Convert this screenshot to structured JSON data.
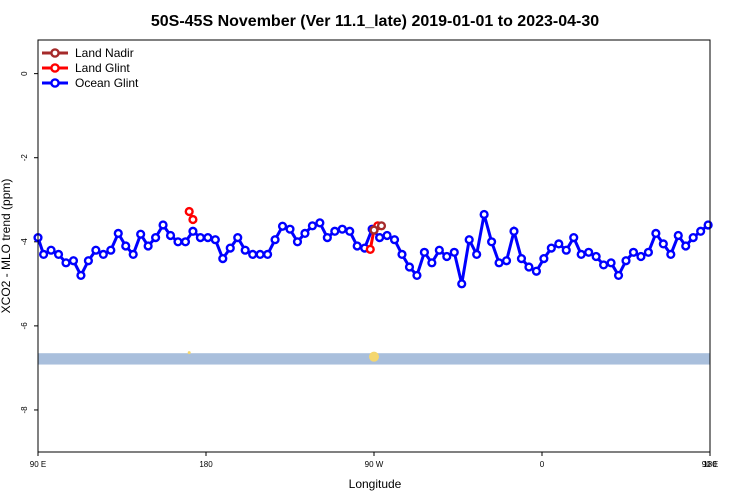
{
  "chart_data": {
    "type": "line",
    "title": "50S-45S November (Ver 11.1_late)   2019-01-01 to 2023-04-30",
    "xlabel": "Longitude",
    "ylabel": "XCO2 - MLO trend (ppm)",
    "xlim": [
      90,
      450
    ],
    "ylim": [
      -9,
      0.8
    ],
    "x_ticks": [
      {
        "value": 90,
        "label": "90 E"
      },
      {
        "value": 180,
        "label": "180"
      },
      {
        "value": 270,
        "label": "90 W"
      },
      {
        "value": 360,
        "label": "0"
      },
      {
        "value": 450,
        "label": "90 E"
      },
      {
        "value": 540,
        "label": "180"
      }
    ],
    "y_ticks": [
      {
        "value": 0,
        "label": "0"
      },
      {
        "value": -2,
        "label": "-2"
      },
      {
        "value": -4,
        "label": "-4"
      },
      {
        "value": -6,
        "label": "-6"
      },
      {
        "value": -8,
        "label": "-8"
      }
    ],
    "legend_position": "top-left",
    "land_band": {
      "y_from": -6.65,
      "y_to": -6.92,
      "color": "#a9bfdc",
      "marker_color": "#f5d76e"
    },
    "series": [
      {
        "name": "Land Nadir",
        "color": "#a52a2a",
        "x": [
          270,
          274
        ],
        "y": [
          -3.72,
          -3.62
        ]
      },
      {
        "name": "Land Glint",
        "color": "#ff0000",
        "segments": [
          {
            "x": [
              171,
              173
            ],
            "y": [
              -3.28,
              -3.47
            ]
          },
          {
            "x": [
              268,
              270,
              272
            ],
            "y": [
              -4.18,
              -3.72,
              -3.62
            ]
          },
          {
            "x": [
              526,
              528
            ],
            "y": [
              -3.28,
              -3.47
            ]
          }
        ]
      },
      {
        "name": "Ocean Glint",
        "color": "#0000ff",
        "x": [
          90,
          93,
          97,
          101,
          105,
          109,
          113,
          117,
          121,
          125,
          129,
          133,
          137,
          141,
          145,
          149,
          153,
          157,
          161,
          165,
          169,
          173,
          177,
          181,
          185,
          189,
          193,
          197,
          201,
          205,
          209,
          213,
          217,
          221,
          225,
          229,
          233,
          237,
          241,
          245,
          249,
          253,
          257,
          261,
          265,
          269,
          273,
          277,
          281,
          285,
          289,
          293,
          297,
          301,
          305,
          309,
          313,
          317,
          321,
          325,
          329,
          333,
          337,
          341,
          345,
          349,
          353,
          357,
          361,
          365,
          369,
          373,
          377,
          381,
          385,
          389,
          393,
          397,
          401,
          405,
          409,
          413,
          417,
          421,
          425,
          429,
          433,
          437,
          441,
          445,
          449
        ],
        "y": [
          -3.9,
          -4.3,
          -4.2,
          -4.3,
          -4.5,
          -4.45,
          -4.8,
          -4.45,
          -4.2,
          -4.3,
          -4.2,
          -3.8,
          -4.1,
          -4.3,
          -3.82,
          -4.1,
          -3.9,
          -3.6,
          -3.85,
          -4.0,
          -4.0,
          -3.75,
          -3.9,
          -3.9,
          -3.95,
          -4.4,
          -4.15,
          -3.9,
          -4.2,
          -4.3,
          -4.3,
          -4.3,
          -3.95,
          -3.63,
          -3.7,
          -4.0,
          -3.8,
          -3.62,
          -3.55,
          -3.9,
          -3.75,
          -3.7,
          -3.75,
          -4.1,
          -4.15,
          -3.7,
          -3.9,
          -3.85,
          -3.95,
          -4.3,
          -4.6,
          -4.8,
          -4.25,
          -4.5,
          -4.2,
          -4.35,
          -4.25,
          -5.0,
          -3.95,
          -4.3,
          -3.35,
          -4.0,
          -4.5,
          -4.45,
          -3.75,
          -4.4,
          -4.6,
          -4.7,
          -4.4,
          -4.15,
          -4.05,
          -4.2,
          -3.9,
          -4.3,
          -4.25,
          -4.35,
          -4.55,
          -4.5,
          -4.8,
          -4.45,
          -4.25,
          -4.35,
          -4.25,
          -3.8,
          -4.05,
          -4.3,
          -3.85,
          -4.1,
          -3.9,
          -3.75,
          -3.6
        ]
      }
    ]
  }
}
